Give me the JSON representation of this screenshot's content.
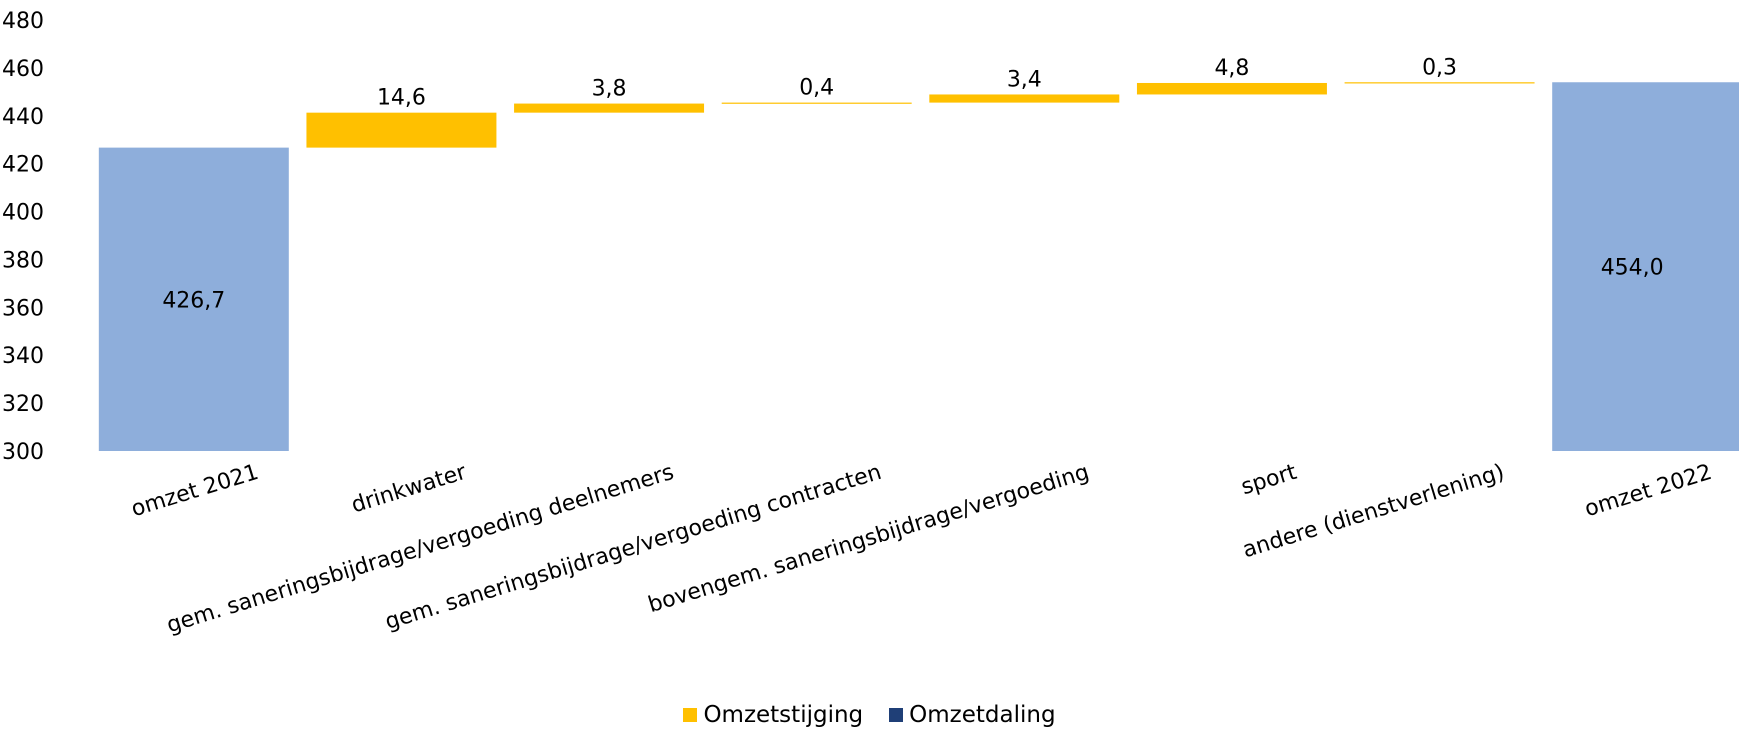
{
  "chart_data": {
    "type": "waterfall",
    "ylim": [
      300,
      480
    ],
    "yticks": [
      300,
      320,
      340,
      360,
      380,
      400,
      420,
      440,
      460,
      480
    ],
    "grid": false,
    "legend_position": "bottom",
    "bars": [
      {
        "category": "omzet 2021",
        "kind": "total",
        "value": 426.7,
        "label": "426,7"
      },
      {
        "category": "drinkwater",
        "kind": "increase",
        "value": 14.6,
        "label": "14,6"
      },
      {
        "category": "gem. saneringsbijdrage/vergoeding deelnemers",
        "kind": "increase",
        "value": 3.8,
        "label": "3,8"
      },
      {
        "category": "gem. saneringsbijdrage/vergoeding contracten",
        "kind": "increase",
        "value": 0.4,
        "label": "0,4"
      },
      {
        "category": "bovengem. saneringsbijdrage/vergoeding",
        "kind": "increase",
        "value": 3.4,
        "label": "3,4"
      },
      {
        "category": "sport",
        "kind": "increase",
        "value": 4.8,
        "label": "4,8"
      },
      {
        "category": "andere (dienstverlening)",
        "kind": "increase",
        "value": 0.3,
        "label": "0,3"
      },
      {
        "category": "omzet 2022",
        "kind": "total",
        "value": 454.0,
        "label": "454,0"
      }
    ],
    "legend": [
      {
        "name": "Omzetstijging",
        "color": "#FFC000"
      },
      {
        "name": "Omzetdaling",
        "color": "#1F3F77"
      }
    ],
    "colors": {
      "total": "#8EAEDB",
      "increase": "#FFC000"
    }
  }
}
